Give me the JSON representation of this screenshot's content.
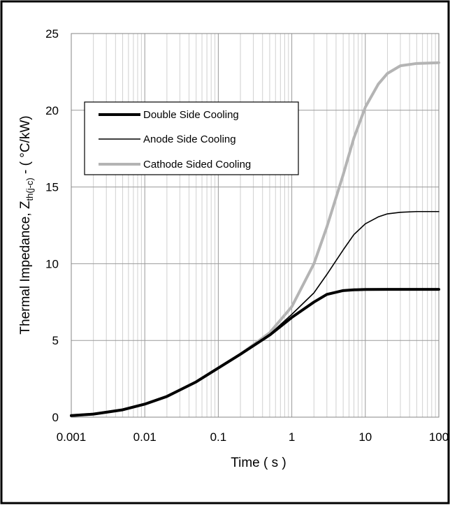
{
  "chart_data": {
    "type": "line",
    "title": "",
    "xlabel": "Time ( s )",
    "ylabel": {
      "main": "Thermal Impedance, Z",
      "subscript": "th(j-c)",
      "suffix": " - ( °C/kW)"
    },
    "x_scale": "log",
    "xlim": [
      0.001,
      100
    ],
    "ylim": [
      0,
      25
    ],
    "x_ticks": [
      "0.001",
      "0.01",
      "0.1",
      "1",
      "10",
      "100"
    ],
    "y_ticks": [
      "0",
      "5",
      "10",
      "15",
      "20",
      "25"
    ],
    "grid": true,
    "legend_position": "upper-left",
    "series": [
      {
        "name": "Double Side Cooling",
        "color": "#000000",
        "style": "thick",
        "points": [
          [
            0.001,
            0.1
          ],
          [
            0.002,
            0.2
          ],
          [
            0.005,
            0.48
          ],
          [
            0.01,
            0.85
          ],
          [
            0.02,
            1.35
          ],
          [
            0.05,
            2.3
          ],
          [
            0.1,
            3.2
          ],
          [
            0.2,
            4.1
          ],
          [
            0.5,
            5.35
          ],
          [
            1,
            6.5
          ],
          [
            2,
            7.5
          ],
          [
            3,
            8.0
          ],
          [
            5,
            8.25
          ],
          [
            7,
            8.3
          ],
          [
            10,
            8.32
          ],
          [
            20,
            8.33
          ],
          [
            50,
            8.33
          ],
          [
            100,
            8.33
          ]
        ]
      },
      {
        "name": "Anode Side Cooling",
        "color": "#000000",
        "style": "thin",
        "points": [
          [
            0.001,
            0.1
          ],
          [
            0.002,
            0.2
          ],
          [
            0.005,
            0.48
          ],
          [
            0.01,
            0.85
          ],
          [
            0.02,
            1.35
          ],
          [
            0.05,
            2.3
          ],
          [
            0.1,
            3.2
          ],
          [
            0.2,
            4.1
          ],
          [
            0.5,
            5.4
          ],
          [
            1,
            6.7
          ],
          [
            2,
            8.1
          ],
          [
            3,
            9.3
          ],
          [
            5,
            10.9
          ],
          [
            7,
            11.9
          ],
          [
            10,
            12.6
          ],
          [
            15,
            13.05
          ],
          [
            20,
            13.25
          ],
          [
            30,
            13.35
          ],
          [
            50,
            13.4
          ],
          [
            100,
            13.4
          ]
        ]
      },
      {
        "name": "Cathode Sided Cooling",
        "color": "#b4b4b4",
        "style": "thick",
        "points": [
          [
            0.001,
            0.1
          ],
          [
            0.002,
            0.2
          ],
          [
            0.005,
            0.48
          ],
          [
            0.01,
            0.85
          ],
          [
            0.02,
            1.35
          ],
          [
            0.05,
            2.3
          ],
          [
            0.1,
            3.2
          ],
          [
            0.2,
            4.1
          ],
          [
            0.5,
            5.5
          ],
          [
            1,
            7.2
          ],
          [
            2,
            10.0
          ],
          [
            3,
            12.4
          ],
          [
            5,
            15.8
          ],
          [
            7,
            18.2
          ],
          [
            10,
            20.2
          ],
          [
            15,
            21.7
          ],
          [
            20,
            22.4
          ],
          [
            30,
            22.9
          ],
          [
            50,
            23.05
          ],
          [
            100,
            23.1
          ]
        ]
      }
    ]
  }
}
